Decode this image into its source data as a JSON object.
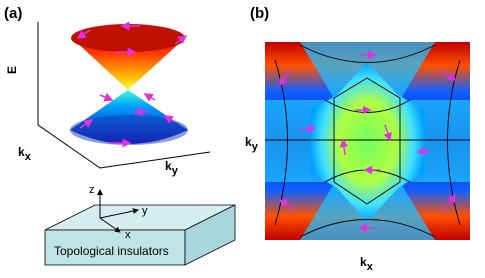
{
  "panels": [
    {
      "label": "(a)",
      "axes": {
        "energy": "E",
        "kx": {
          "main": "k",
          "sub": "x"
        },
        "ky": {
          "main": "k",
          "sub": "y"
        }
      },
      "slab": {
        "axes": {
          "z": "z",
          "y": "y",
          "x": "x"
        },
        "caption": "Topological insulators"
      }
    },
    {
      "label": "(b)",
      "axes": {
        "kx": {
          "main": "k",
          "sub": "x"
        },
        "ky": {
          "main": "k",
          "sub": "y"
        }
      }
    }
  ]
}
